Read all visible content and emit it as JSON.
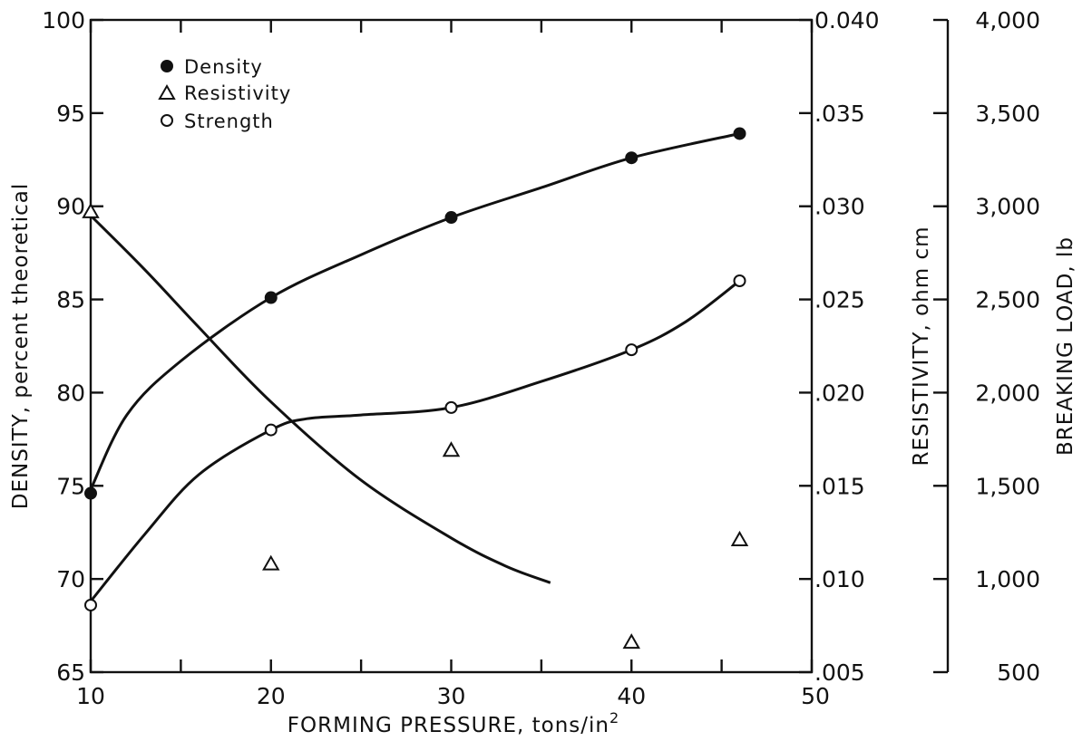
{
  "chart_data": {
    "type": "scatter",
    "xlabel": "FORMING PRESSURE,",
    "xlabel_unit": "tons/in",
    "xlabel_unit_exp": "2",
    "xlim": [
      10,
      50
    ],
    "xticks": [
      "10",
      "20",
      "30",
      "40",
      "50"
    ],
    "ylabel_left": "DENSITY,",
    "ylabel_left_unit": "percent theoretical",
    "ylim_left": [
      65,
      100
    ],
    "yticks_left": [
      "65",
      "70",
      "75",
      "80",
      "85",
      "90",
      "95",
      "100"
    ],
    "ylabel_right1": "RESISTIVITY,",
    "ylabel_right1_unit": "ohm cm",
    "ylim_right1": [
      0.005,
      0.04
    ],
    "yticks_right1": [
      ".005",
      ".010",
      ".015",
      ".020",
      ".025",
      ".030",
      ".035",
      "0.040"
    ],
    "ylabel_right2": "BREAKING LOAD,",
    "ylabel_right2_unit": "lb",
    "ylim_right2": [
      500,
      4000
    ],
    "yticks_right2": [
      "500",
      "1,000",
      "1,500",
      "2,000",
      "2,500",
      "3,000",
      "3,500",
      "4,000"
    ],
    "legend_position": "top-left",
    "grid": false,
    "series": [
      {
        "name": "Density",
        "marker": "filled-circle",
        "axis": "left",
        "x": [
          10,
          20,
          30,
          40,
          46
        ],
        "y": [
          74.6,
          85.1,
          89.4,
          92.6,
          93.9
        ],
        "curve_x": [
          10,
          12,
          15,
          20,
          25,
          30,
          35,
          40,
          46
        ],
        "curve_y": [
          74.8,
          78.8,
          81.7,
          85.1,
          87.4,
          89.4,
          91.0,
          92.6,
          93.9
        ]
      },
      {
        "name": "Resistivity",
        "marker": "open-triangle",
        "axis": "right1",
        "x": [
          10,
          20,
          30,
          40,
          46
        ],
        "y": [
          0.0297,
          0.0108,
          0.0169,
          0.0066,
          0.0121
        ],
        "curve_x": [
          10,
          13,
          16,
          20,
          25,
          30,
          33,
          35.5
        ],
        "curve_y": [
          0.0295,
          0.0266,
          0.0235,
          0.0195,
          0.0153,
          0.0122,
          0.0107,
          0.0098
        ]
      },
      {
        "name": "Strength",
        "marker": "open-circle",
        "axis": "right2",
        "x": [
          10,
          20,
          30,
          40,
          46
        ],
        "y": [
          860,
          1800,
          1920,
          2230,
          2600
        ],
        "curve_x": [
          10,
          13,
          16,
          20,
          22,
          25,
          30,
          35,
          40,
          43,
          46
        ],
        "curve_y": [
          880,
          1240,
          1560,
          1800,
          1860,
          1880,
          1920,
          2060,
          2230,
          2380,
          2600
        ]
      }
    ]
  }
}
